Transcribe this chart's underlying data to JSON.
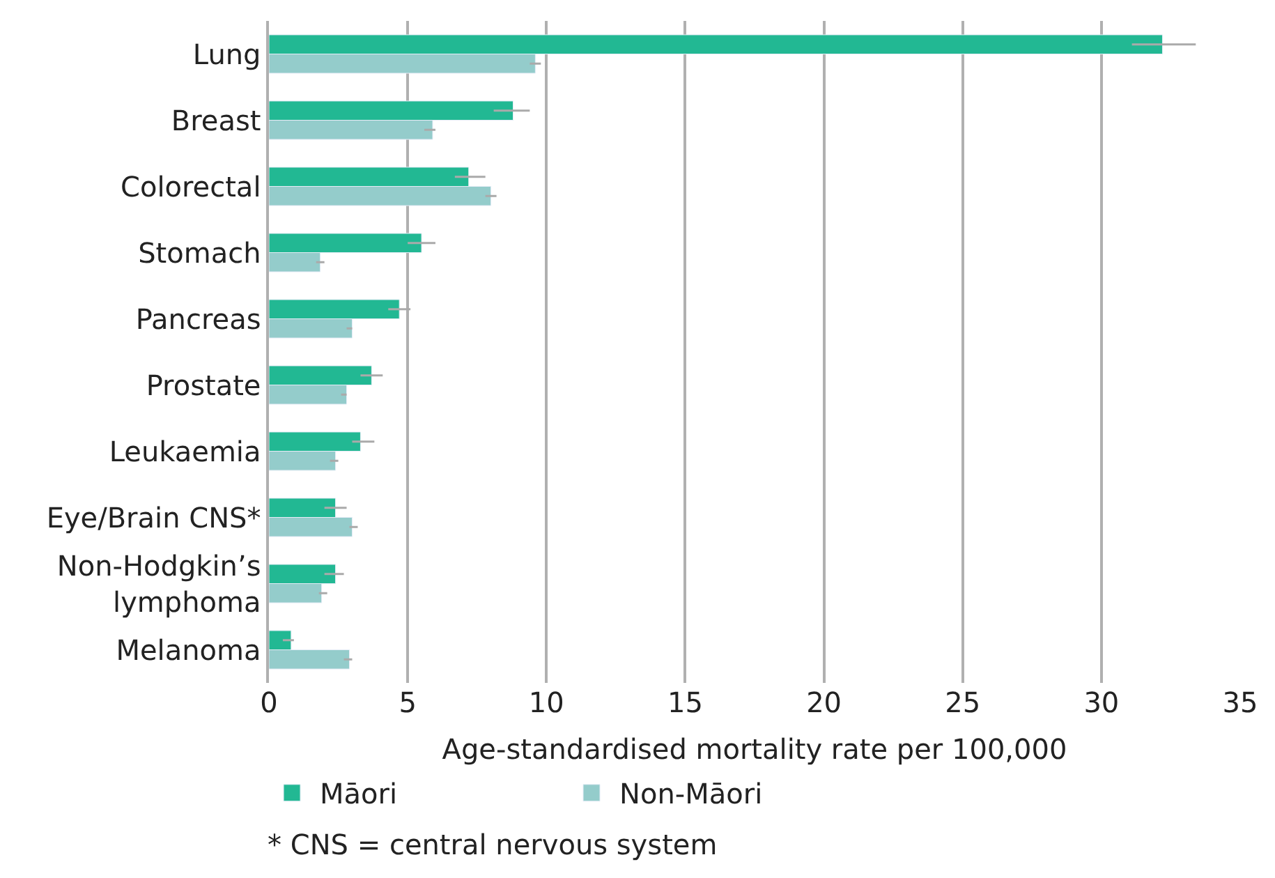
{
  "chart_data": {
    "type": "bar",
    "orientation": "horizontal",
    "xlabel": "Age-standardised mortality rate per 100,000",
    "categories": [
      "Lung",
      "Breast",
      "Colorectal",
      "Stomach",
      "Pancreas",
      "Prostate",
      "Leukaemia",
      "Eye/Brain CNS*",
      "Non-Hodgkin’s\nlymphoma",
      "Melanoma"
    ],
    "series": [
      {
        "name": "Māori",
        "color": "#22b893",
        "values": [
          32.2,
          8.8,
          7.2,
          5.5,
          4.7,
          3.7,
          3.3,
          2.4,
          2.4,
          0.8
        ],
        "errors": [
          [
            31.1,
            33.4
          ],
          [
            8.1,
            9.4
          ],
          [
            6.7,
            7.8
          ],
          [
            5.0,
            6.0
          ],
          [
            4.3,
            5.1
          ],
          [
            3.3,
            4.1
          ],
          [
            3.0,
            3.8
          ],
          [
            2.0,
            2.8
          ],
          [
            2.0,
            2.7
          ],
          [
            0.5,
            0.9
          ]
        ]
      },
      {
        "name": "Non-Māori",
        "color": "#94cccb",
        "values": [
          9.6,
          5.9,
          8.0,
          1.85,
          3.0,
          2.8,
          2.4,
          3.0,
          1.9,
          2.9
        ],
        "errors": [
          [
            9.4,
            9.8
          ],
          [
            5.6,
            6.0
          ],
          [
            7.8,
            8.2
          ],
          [
            1.7,
            2.0
          ],
          [
            2.8,
            3.0
          ],
          [
            2.6,
            2.8
          ],
          [
            2.2,
            2.5
          ],
          [
            2.9,
            3.2
          ],
          [
            1.8,
            2.1
          ],
          [
            2.7,
            3.0
          ]
        ]
      }
    ],
    "xlim": [
      0,
      35
    ],
    "xticks": [
      0,
      5,
      10,
      15,
      20,
      25,
      30,
      35
    ],
    "grid": "x",
    "legend": "bottom",
    "annotations": [
      "* CNS = central nervous system"
    ]
  }
}
